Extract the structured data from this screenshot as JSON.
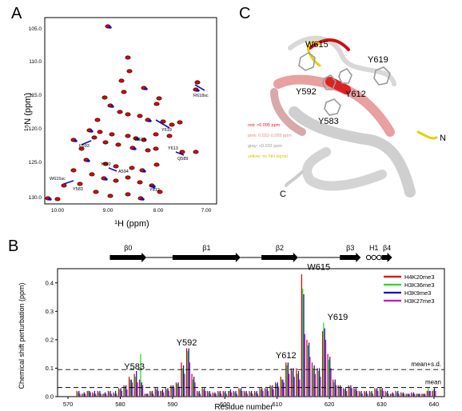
{
  "panels": {
    "a": {
      "label": "A"
    },
    "b": {
      "label": "B"
    },
    "c": {
      "label": "C"
    }
  },
  "hsqc": {
    "xlabel": "¹H (ppm)",
    "ylabel": "¹⁵N (ppm)",
    "x_ticks": [
      "10.00",
      "9.00",
      "8.00",
      "7.00"
    ],
    "y_ticks": [
      "105.0",
      "110.0",
      "115.0",
      "120.0",
      "125.0",
      "130.0"
    ],
    "annotations": [
      "R618sc",
      "W615",
      "Y619",
      "E593",
      "Y613",
      "Q589",
      "Y592",
      "A594",
      "W615sc",
      "Y583",
      "Y612"
    ],
    "colors": {
      "red": "#e00000",
      "blue": "#1010c0",
      "black": "#000000"
    }
  },
  "structure": {
    "labels": [
      "W615",
      "Y619",
      "Y592",
      "Y612",
      "Y583",
      "N",
      "C"
    ],
    "legend": [
      {
        "text": "red: >0.095 ppm",
        "color": "#e02020"
      },
      {
        "text": "pink: 0.032-0.095 ppm",
        "color": "#e88a8a"
      },
      {
        "text": "gray: <0.032 ppm",
        "color": "#999999"
      },
      {
        "text": "yellow: no NH signal",
        "color": "#e0c000"
      }
    ]
  },
  "chart_data": {
    "type": "bar",
    "xlabel": "Residue number",
    "ylabel": "Chemical shift perturbation (ppm)",
    "xlim": [
      568,
      642
    ],
    "ylim": [
      0,
      0.45
    ],
    "x_ticks": [
      570,
      580,
      590,
      600,
      610,
      620,
      630,
      640
    ],
    "y_ticks": [
      0.0,
      0.1,
      0.2,
      0.3,
      0.4
    ],
    "series_names": [
      "H4K20me3",
      "H3K36me3",
      "H3K9me3",
      "H3K27me3"
    ],
    "series_colors": [
      "#e00000",
      "#22dd22",
      "#1010c0",
      "#cc00cc"
    ],
    "residues": [
      572,
      573,
      574,
      575,
      576,
      577,
      578,
      579,
      580,
      581,
      582,
      583,
      584,
      585,
      586,
      587,
      588,
      589,
      590,
      591,
      592,
      593,
      594,
      595,
      596,
      597,
      598,
      599,
      600,
      601,
      602,
      603,
      604,
      605,
      606,
      607,
      608,
      609,
      610,
      611,
      612,
      613,
      614,
      615,
      616,
      617,
      618,
      619,
      620,
      621,
      622,
      623,
      624,
      625,
      626,
      627,
      628,
      629,
      630,
      631,
      632,
      633,
      634,
      635,
      636,
      637,
      638,
      639,
      640
    ],
    "series": [
      {
        "name": "H4K20me3",
        "values": [
          0.02,
          0.01,
          0.02,
          0.015,
          0.02,
          0.01,
          0.02,
          0.015,
          0.03,
          0.04,
          0.07,
          0.08,
          0.06,
          0.01,
          0.02,
          0.03,
          0.02,
          0.03,
          0.04,
          0.05,
          0.12,
          0.17,
          0.08,
          0.02,
          0.03,
          0.02,
          0.015,
          0.02,
          0.02,
          0.02,
          0.02,
          0.03,
          0.02,
          0.02,
          0.02,
          0.03,
          0.03,
          0.04,
          0.05,
          0.07,
          0.12,
          0.1,
          0.1,
          0.43,
          0.2,
          0.12,
          0.1,
          0.23,
          0.15,
          0.06,
          0.04,
          0.03,
          0.04,
          0.03,
          0.02,
          0.02,
          0.02,
          0.03,
          0.03,
          0.02,
          0.01,
          0.02,
          0.015,
          0.01,
          0.015,
          0.01,
          0.01,
          0.02,
          0.02
        ]
      },
      {
        "name": "H3K36me3",
        "values": [
          0.015,
          0.01,
          0.02,
          0.01,
          0.015,
          0.01,
          0.015,
          0.01,
          0.025,
          0.035,
          0.06,
          0.07,
          0.15,
          0.01,
          0.015,
          0.025,
          0.02,
          0.025,
          0.035,
          0.045,
          0.1,
          0.16,
          0.06,
          0.015,
          0.025,
          0.015,
          0.01,
          0.015,
          0.015,
          0.02,
          0.015,
          0.025,
          0.015,
          0.015,
          0.015,
          0.025,
          0.025,
          0.035,
          0.045,
          0.06,
          0.11,
          0.09,
          0.08,
          0.38,
          0.18,
          0.1,
          0.09,
          0.26,
          0.13,
          0.05,
          0.035,
          0.025,
          0.03,
          0.025,
          0.015,
          0.015,
          0.015,
          0.025,
          0.025,
          0.015,
          0.01,
          0.015,
          0.01,
          0.01,
          0.01,
          0.01,
          0.01,
          0.03,
          0.025
        ]
      },
      {
        "name": "H3K9me3",
        "values": [
          0.02,
          0.015,
          0.02,
          0.02,
          0.02,
          0.015,
          0.02,
          0.02,
          0.03,
          0.04,
          0.06,
          0.09,
          0.05,
          0.01,
          0.02,
          0.03,
          0.025,
          0.03,
          0.04,
          0.05,
          0.11,
          0.17,
          0.07,
          0.02,
          0.03,
          0.02,
          0.015,
          0.02,
          0.02,
          0.025,
          0.02,
          0.03,
          0.02,
          0.02,
          0.02,
          0.03,
          0.03,
          0.04,
          0.05,
          0.06,
          0.12,
          0.1,
          0.09,
          0.36,
          0.19,
          0.11,
          0.1,
          0.24,
          0.14,
          0.06,
          0.04,
          0.03,
          0.04,
          0.03,
          0.02,
          0.02,
          0.02,
          0.03,
          0.03,
          0.02,
          0.015,
          0.02,
          0.015,
          0.01,
          0.015,
          0.01,
          0.01,
          0.02,
          0.03
        ]
      },
      {
        "name": "H3K27me3",
        "values": [
          0.01,
          0.01,
          0.015,
          0.01,
          0.01,
          0.01,
          0.01,
          0.01,
          0.02,
          0.025,
          0.05,
          0.05,
          0.04,
          0.01,
          0.01,
          0.02,
          0.015,
          0.02,
          0.03,
          0.035,
          0.08,
          0.12,
          0.05,
          0.01,
          0.02,
          0.01,
          0.01,
          0.01,
          0.01,
          0.015,
          0.01,
          0.02,
          0.01,
          0.01,
          0.01,
          0.02,
          0.02,
          0.025,
          0.035,
          0.05,
          0.08,
          0.07,
          0.06,
          0.22,
          0.14,
          0.08,
          0.07,
          0.2,
          0.1,
          0.04,
          0.03,
          0.02,
          0.03,
          0.02,
          0.01,
          0.01,
          0.01,
          0.02,
          0.02,
          0.01,
          0.01,
          0.01,
          0.01,
          0.01,
          0.01,
          0.01,
          0.01,
          0.02,
          0.02
        ]
      }
    ],
    "reference_lines": [
      {
        "label": "mean+s.d.",
        "value": 0.095
      },
      {
        "label": "mean",
        "value": 0.032
      }
    ],
    "residue_labels": [
      {
        "text": "Y583",
        "x": 583,
        "y": 0.09
      },
      {
        "text": "Y592",
        "x": 593,
        "y": 0.175
      },
      {
        "text": "Y612",
        "x": 612,
        "y": 0.13
      },
      {
        "text": "W615",
        "x": 615,
        "y": 0.44
      },
      {
        "text": "Y619",
        "x": 619,
        "y": 0.265
      }
    ],
    "secondary_structure": [
      {
        "label": "β0",
        "start": 578,
        "end": 585,
        "kind": "strand"
      },
      {
        "label": "β1",
        "start": 590,
        "end": 603,
        "kind": "strand"
      },
      {
        "label": "β2",
        "start": 607,
        "end": 614,
        "kind": "strand"
      },
      {
        "label": "β3",
        "start": 622,
        "end": 626,
        "kind": "strand"
      },
      {
        "label": "H1",
        "start": 627,
        "end": 630,
        "kind": "helix"
      },
      {
        "label": "β4",
        "start": 630,
        "end": 632,
        "kind": "strand"
      }
    ]
  }
}
